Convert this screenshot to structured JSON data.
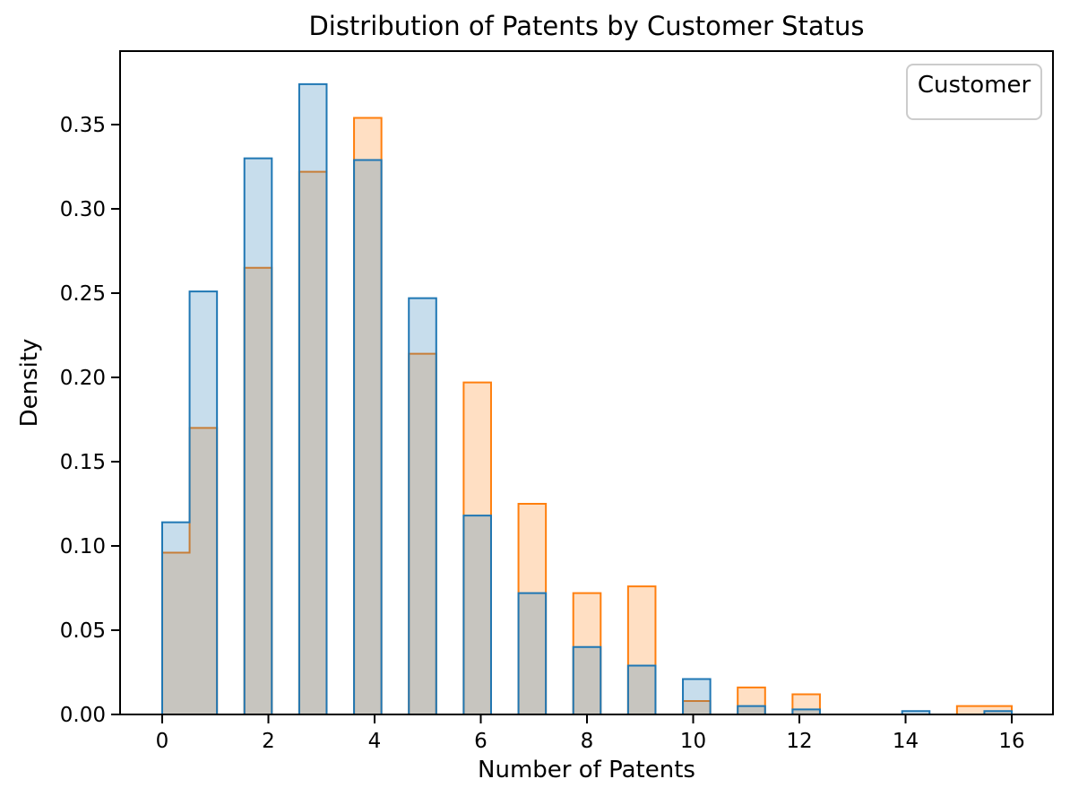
{
  "chart_data": {
    "type": "histogram",
    "element": "step",
    "stat": "density",
    "title": "Distribution of Patents by Customer Status",
    "xlabel": "Number of Patents",
    "ylabel": "Density",
    "legend": {
      "title": "Customer",
      "position": "upper-right",
      "entries": []
    },
    "grid": false,
    "xlim": [
      -0.793,
      16.776
    ],
    "ylim": [
      0,
      0.3936
    ],
    "xtick_values": [
      0,
      2,
      4,
      6,
      8,
      10,
      12,
      14,
      16
    ],
    "xtick_labels": [
      "0",
      "2",
      "4",
      "6",
      "8",
      "10",
      "12",
      "14",
      "16"
    ],
    "ytick_values": [
      0.0,
      0.05,
      0.1,
      0.15,
      0.2,
      0.25,
      0.3,
      0.35
    ],
    "ytick_labels": [
      "0.00",
      "0.05",
      "0.10",
      "0.15",
      "0.20",
      "0.25",
      "0.30",
      "0.35"
    ],
    "bin_range": [
      0,
      16
    ],
    "bin_count": 31,
    "series": [
      {
        "name": "orange-series",
        "color": "#ff7f0e",
        "fill_opacity": 0.25,
        "edge_width": 2,
        "heights": [
          0.096,
          0.17,
          0,
          0.265,
          0,
          0.322,
          0,
          0.354,
          0,
          0.214,
          0,
          0.197,
          0,
          0.125,
          0,
          0.072,
          0,
          0.076,
          0,
          0.008,
          0,
          0.016,
          0,
          0.012,
          0,
          0,
          0,
          0,
          0,
          0.005,
          0.005
        ]
      },
      {
        "name": "blue-series",
        "color": "#1f77b4",
        "fill_opacity": 0.25,
        "edge_width": 2,
        "heights": [
          0.114,
          0.251,
          0,
          0.33,
          0,
          0.374,
          0,
          0.329,
          0,
          0.247,
          0,
          0.118,
          0,
          0.072,
          0,
          0.04,
          0,
          0.029,
          0,
          0.021,
          0,
          0.005,
          0,
          0.003,
          0,
          0,
          0,
          0.002,
          0,
          0,
          0.002
        ]
      }
    ]
  }
}
